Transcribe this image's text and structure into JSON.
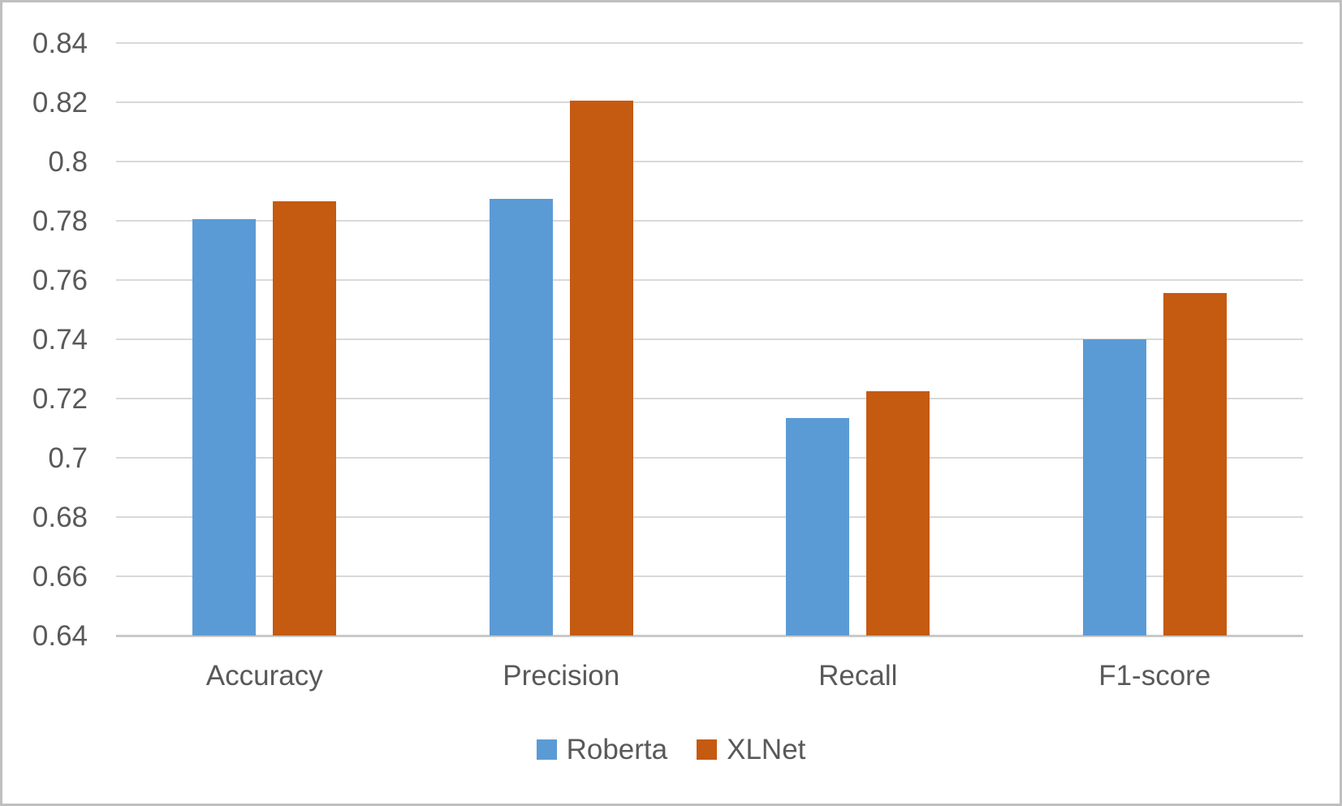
{
  "chart_data": {
    "type": "bar",
    "title": "",
    "xlabel": "",
    "ylabel": "",
    "categories": [
      "Accuracy",
      "Precision",
      "Recall",
      "F1-score"
    ],
    "series": [
      {
        "name": "Roberta",
        "color": "#5B9BD5",
        "values": [
          0.7805,
          0.7875,
          0.7135,
          0.74
        ]
      },
      {
        "name": "XLNet",
        "color": "#C55A11",
        "values": [
          0.7865,
          0.8205,
          0.7225,
          0.7555
        ]
      }
    ],
    "ylim": [
      0.64,
      0.84
    ],
    "y_ticks": [
      0.84,
      0.82,
      0.8,
      0.78,
      0.76,
      0.74,
      0.72,
      0.7,
      0.68,
      0.66,
      0.64
    ],
    "y_tick_labels": [
      "0.84",
      "0.82",
      "0.8",
      "0.78",
      "0.76",
      "0.74",
      "0.72",
      "0.7",
      "0.68",
      "0.66",
      "0.64"
    ],
    "grid": true,
    "legend_position": "bottom"
  },
  "colors": {
    "gridline": "#D9D9D9",
    "axis_line": "#C9C9C9",
    "text": "#595959",
    "frame_border": "#BFBFBF",
    "background": "#FFFFFF"
  }
}
